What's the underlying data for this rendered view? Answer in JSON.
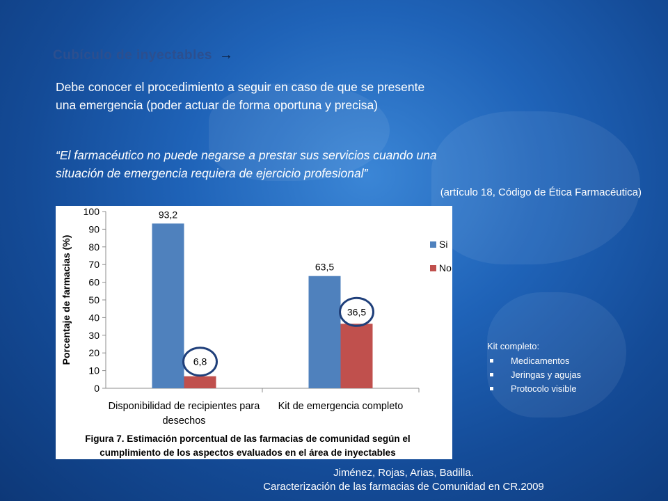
{
  "slide": {
    "section_title": "Cubículo de inyectables",
    "intro_line1": "Debe conocer el procedimiento a seguir en caso de que se presente",
    "intro_line2": "una emergencia (poder actuar de forma oportuna y precisa)",
    "quote_line1": "“El farmacéutico no puede negarse a prestar sus servicios cuando una",
    "quote_line2": "situación de emergencia requiera de ejercicio profesional”",
    "citation": "(artículo 18, Código de Ética Farmacéutica)",
    "kit_title": "Kit completo:",
    "kit_items": [
      "Medicamentos",
      "Jeringas y agujas",
      "Protocolo visible"
    ],
    "footer_line1": "Jiménez, Rojas, Arias, Badilla.",
    "footer_line2": "Caracterización de las farmacias de Comunidad en CR.2009"
  },
  "chart_data": {
    "type": "bar",
    "categories": [
      [
        "Disponibilidad de recipientes para",
        "desechos"
      ],
      [
        "Kit de emergencia completo"
      ]
    ],
    "series": [
      {
        "name": "Si",
        "color": "#4f81bd",
        "values": [
          93.2,
          63.5
        ],
        "labels": [
          "93,2",
          "63,5"
        ]
      },
      {
        "name": "No",
        "color": "#c0504d",
        "values": [
          6.8,
          36.5
        ],
        "labels": [
          "6,8",
          "36,5"
        ]
      }
    ],
    "ylabel": "Porcentaje de farmacias (%)",
    "ylim": [
      0,
      100
    ],
    "yticks": [
      0,
      10,
      20,
      30,
      40,
      50,
      60,
      70,
      80,
      90,
      100
    ],
    "legend_position": "right",
    "caption_line1": "Figura 7. Estimación porcentual de las farmacias de comunidad según el",
    "caption_line2": "cumplimiento de los aspectos evaluados en el área de inyectables",
    "circled_labels": [
      "6,8",
      "36,5"
    ],
    "circle_color": "#1f3f7a"
  }
}
